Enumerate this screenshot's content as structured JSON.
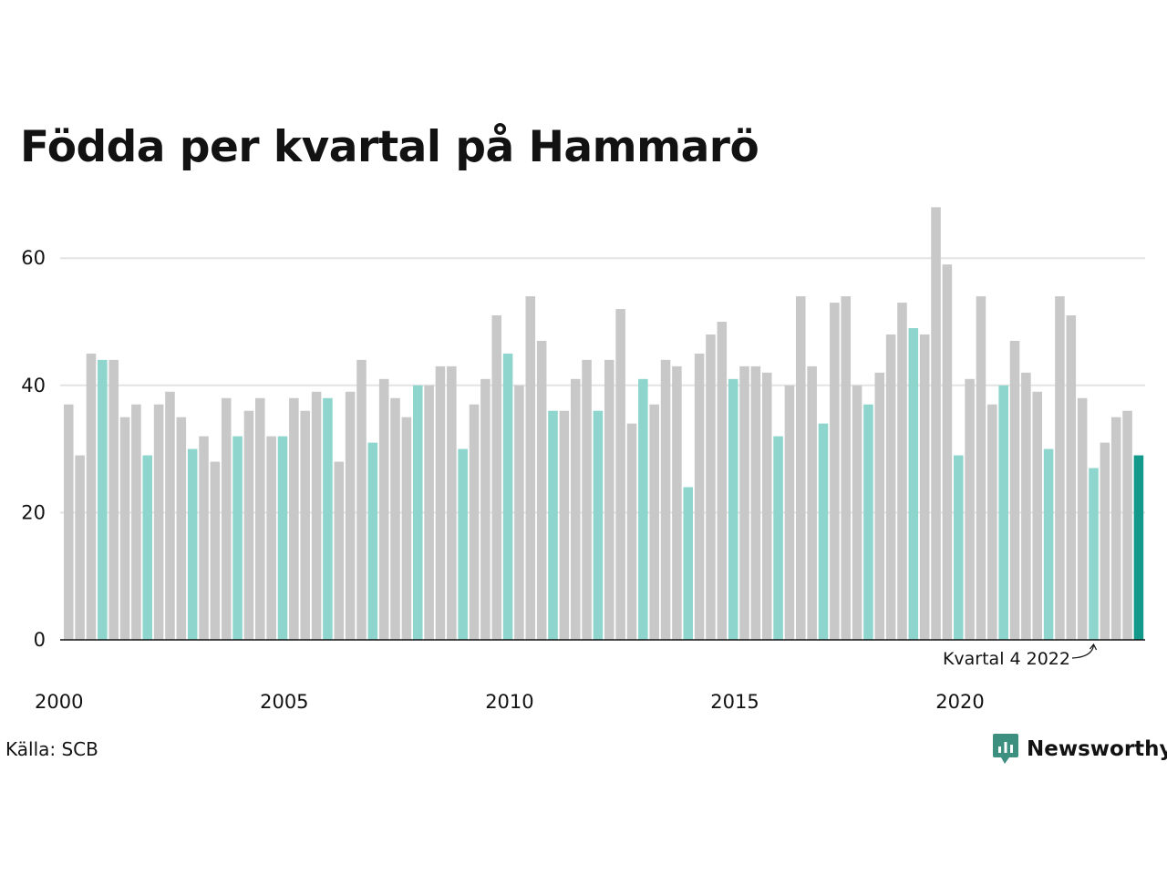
{
  "title": "Födda per kvartal på Hammarö",
  "source": "Källa: SCB",
  "brand": {
    "name": "Newsworthy",
    "icon": "newsworthy-logo-icon",
    "color": "#3d8f80"
  },
  "colors": {
    "default": "#c8c8c8",
    "q4": "#8dd5cd",
    "highlight": "#12998a",
    "grid": "#e3e3e3",
    "axis": "#121212"
  },
  "annotation": {
    "text": "Kvartal 4 2022"
  },
  "chart_data": {
    "type": "bar",
    "title": "Födda per kvartal på Hammarö",
    "xlabel": "",
    "ylabel": "",
    "ylim": [
      0,
      68
    ],
    "yticks": [
      0,
      20,
      40,
      60
    ],
    "xticks": [
      "2000",
      "2005",
      "2010",
      "2015",
      "2020"
    ],
    "grid": true,
    "legend": "none",
    "highlight": "Q4 2022",
    "series": [
      {
        "values": [
          37,
          29,
          45,
          44,
          44,
          35,
          37,
          29,
          37,
          39,
          35,
          30,
          32,
          28,
          38,
          32,
          36,
          38,
          32,
          32,
          38,
          36,
          39,
          38,
          28,
          39,
          44,
          31,
          41,
          38,
          35,
          40,
          40,
          43,
          43,
          30,
          37,
          41,
          51,
          45,
          40,
          54,
          47,
          36,
          36,
          41,
          44,
          36,
          44,
          52,
          34,
          41,
          37,
          44,
          43,
          24,
          45,
          48,
          50,
          41,
          43,
          43,
          42,
          32,
          40,
          54,
          43,
          34,
          53,
          54,
          40,
          37,
          42,
          48,
          53,
          49,
          48,
          68,
          59,
          29,
          41,
          54,
          37,
          40,
          47,
          42,
          39,
          30,
          54,
          51,
          38,
          27,
          31,
          35,
          36,
          29
        ]
      }
    ]
  }
}
